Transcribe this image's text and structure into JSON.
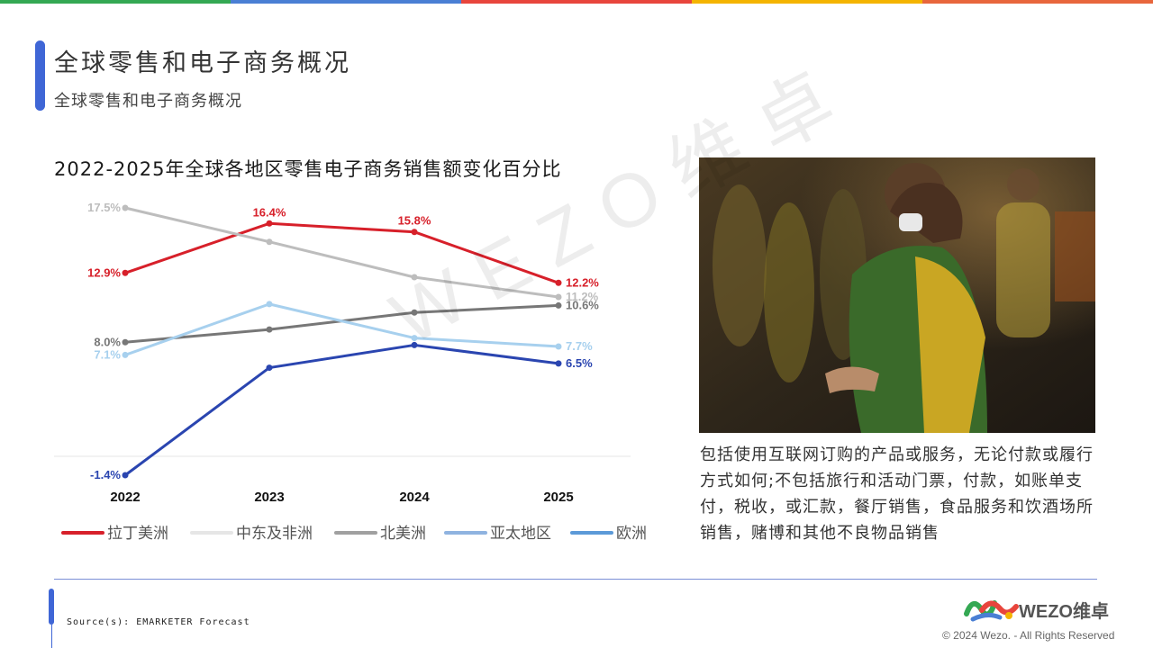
{
  "header": {
    "title": "全球零售和电子商务概况",
    "subtitle": "全球零售和电子商务概况"
  },
  "colors": {
    "top_bar": [
      "#34a853",
      "#4a7fd4",
      "#e8453c",
      "#f4b400",
      "#e8663c"
    ],
    "accent": "#3f66d6"
  },
  "chart_title": "2022-2025年全球各地区零售电子商务销售额变化百分比",
  "chart_data": {
    "type": "line",
    "title": "2022-2025年全球各地区零售电子商务销售额变化百分比",
    "categories": [
      "2022",
      "2023",
      "2024",
      "2025"
    ],
    "ylim": [
      -1.4,
      17.5
    ],
    "grid": false,
    "legend_position": "bottom",
    "series": [
      {
        "name": "拉丁美洲",
        "color": "#d7202a",
        "values": [
          12.9,
          16.4,
          15.8,
          12.2
        ],
        "labels": [
          "12.9%",
          "16.4%",
          "15.8%",
          "12.2%"
        ]
      },
      {
        "name": "中东及非洲",
        "color": "#bdbdbd",
        "values": [
          17.5,
          15.1,
          12.6,
          11.2
        ],
        "labels": [
          "17.5%",
          "",
          "",
          "11.2%"
        ]
      },
      {
        "name": "北美洲",
        "color": "#777777",
        "values": [
          8.0,
          8.9,
          10.1,
          10.6
        ],
        "labels": [
          "8.0%",
          "",
          "",
          "10.6%"
        ]
      },
      {
        "name": "亚太地区",
        "color": "#a7d0ee",
        "values": [
          7.1,
          10.7,
          8.3,
          7.7
        ],
        "labels": [
          "7.1%",
          "",
          "",
          "7.7%"
        ]
      },
      {
        "name": "欧洲",
        "color": "#2a45b0",
        "values": [
          -1.4,
          6.2,
          7.8,
          6.5
        ],
        "labels": [
          "-1.4%",
          "",
          "",
          "6.5%"
        ]
      }
    ],
    "legend": [
      {
        "name": "拉丁美洲",
        "color": "#d7202a"
      },
      {
        "name": "中东及非洲",
        "color": "#e6e6e6"
      },
      {
        "name": "北美洲",
        "color": "#a0a0a0"
      },
      {
        "name": "亚太地区",
        "color": "#8fb3e0"
      },
      {
        "name": "欧洲",
        "color": "#5c9ad8"
      }
    ]
  },
  "description": "包括使用互联网订购的产品或服务，无论付款或履行方式如何;不包括旅行和活动门票，付款，如账单支付，税收，或汇款，餐厅销售，食品服务和饮酒场所销售，赌博和其他不良物品销售",
  "footer": {
    "source": "Source(s): EMARKETER Forecast",
    "brand": "WEZO维卓",
    "copyright": "© 2024 Wezo. - All Rights Reserved"
  },
  "watermark": "WEZO维卓"
}
